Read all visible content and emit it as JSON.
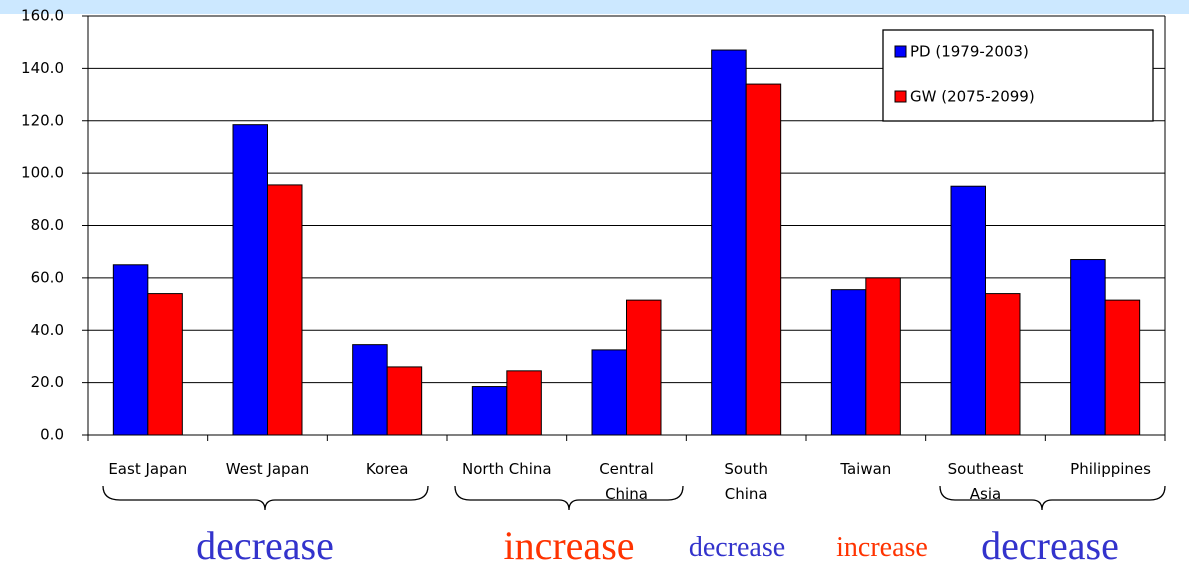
{
  "chart_data": {
    "type": "bar",
    "categories": [
      "East Japan",
      "West Japan",
      "Korea",
      "North China",
      "Central China",
      "South China",
      "Taiwan",
      "Southeast Asia",
      "Philippines"
    ],
    "series": [
      {
        "name": "PD (1979-2003)",
        "color": "#0000ff",
        "values": [
          65,
          118.5,
          34.5,
          18.5,
          32.5,
          147,
          55.5,
          95,
          67
        ]
      },
      {
        "name": "GW (2075-2099)",
        "color": "#ff0000",
        "values": [
          54,
          95.5,
          26,
          24.5,
          51.5,
          134,
          60,
          54,
          51.5
        ]
      }
    ],
    "ylim": [
      0,
      160
    ],
    "yticks": [
      {
        "value": 0,
        "label": "0.0"
      },
      {
        "value": 20,
        "label": "20.0"
      },
      {
        "value": 40,
        "label": "40.0"
      },
      {
        "value": 60,
        "label": "60.0"
      },
      {
        "value": 80,
        "label": "80.0"
      },
      {
        "value": 100,
        "label": "100.0"
      },
      {
        "value": 120,
        "label": "120.0"
      },
      {
        "value": 140,
        "label": "140.0"
      },
      {
        "value": 160,
        "label": "160.0"
      }
    ],
    "grid": true,
    "legend": "upper right",
    "annotations": [
      {
        "text": "decrease",
        "color": "#3333cc"
      },
      {
        "text": "increase",
        "color": "#ff3300"
      },
      {
        "text": "decrease",
        "color": "#3333cc"
      },
      {
        "text": "increase",
        "color": "#ff3300"
      },
      {
        "text": "decrease",
        "color": "#3333cc"
      }
    ]
  }
}
